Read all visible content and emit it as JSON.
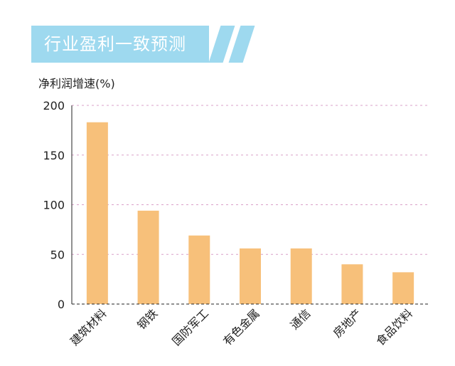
{
  "banner": {
    "title": "行业盈利一致预测",
    "color": "#9ed9ef"
  },
  "chart_data": {
    "type": "bar",
    "title": "行业盈利一致预测",
    "ylabel": "净利润增速(%)",
    "xlabel": "",
    "categories": [
      "建筑材料",
      "钢铁",
      "国防军工",
      "有色金属",
      "通信",
      "房地产",
      "食品饮料"
    ],
    "values": [
      183,
      94,
      69,
      56,
      56,
      40,
      32
    ],
    "ylim": [
      0,
      200
    ],
    "yticks": [
      0,
      50,
      100,
      150,
      200
    ],
    "grid": true,
    "legend": "none",
    "bar_color": "#f7c07a"
  }
}
